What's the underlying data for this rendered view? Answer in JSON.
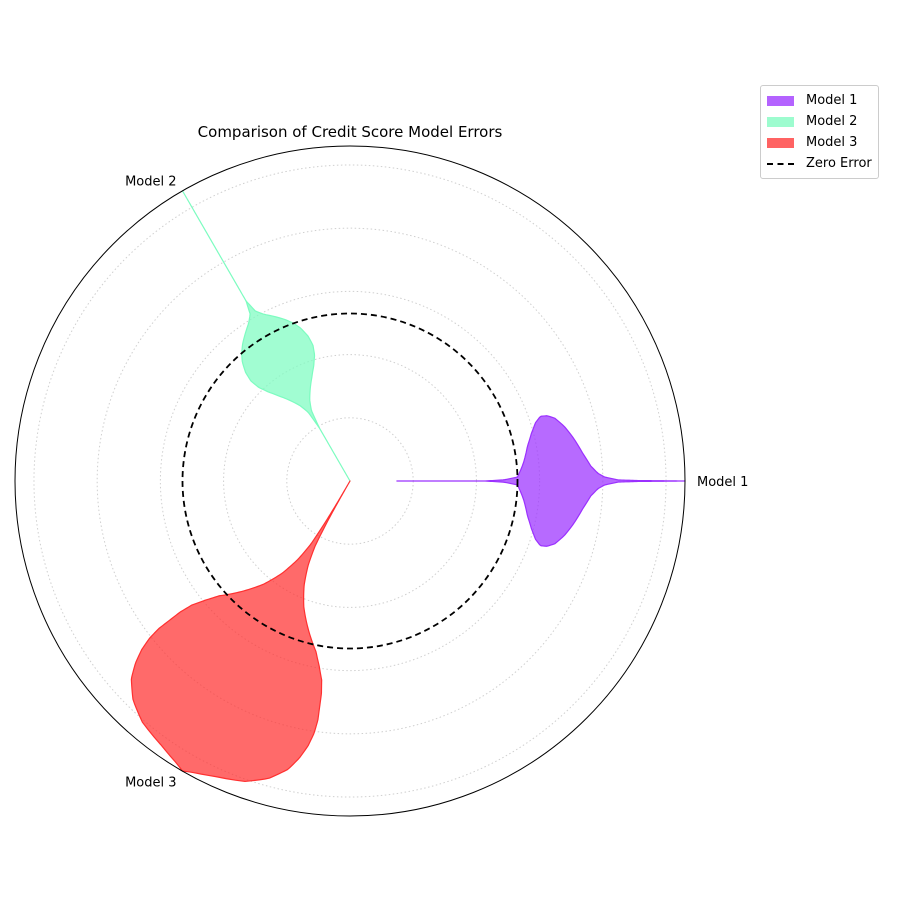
{
  "chart_data": {
    "type": "radar-violin",
    "title": "Comparison of Credit Score Model Errors",
    "categories": [
      "Model 1",
      "Model 2",
      "Model 3"
    ],
    "radial_axis": {
      "min": -2.5,
      "max": 2.5,
      "zero_error": 0,
      "grid": true
    },
    "series": [
      {
        "name": "Model 1",
        "color": "#9b30ff",
        "error_range": [
          -1.8,
          2.5
        ],
        "density_peak_error": 0.5,
        "profile": [
          [
            -1.8,
            0.0
          ],
          [
            -1.7,
            0.0
          ],
          [
            -1.3,
            0.0
          ],
          [
            -0.8,
            0.0
          ],
          [
            -0.5,
            0.0
          ],
          [
            -0.2,
            0.01
          ],
          [
            0.0,
            0.03
          ],
          [
            0.1,
            0.13
          ],
          [
            0.2,
            0.25
          ],
          [
            0.3,
            0.33
          ],
          [
            0.4,
            0.39
          ],
          [
            0.5,
            0.42
          ],
          [
            0.6,
            0.41
          ],
          [
            0.7,
            0.38
          ],
          [
            0.8,
            0.32
          ],
          [
            0.9,
            0.24
          ],
          [
            1.0,
            0.15
          ],
          [
            1.1,
            0.08
          ],
          [
            1.2,
            0.04
          ],
          [
            1.3,
            0.02
          ],
          [
            1.5,
            0.005
          ],
          [
            1.8,
            0.002
          ],
          [
            2.5,
            0.0
          ]
        ]
      },
      {
        "name": "Model 2",
        "color": "#7dfcc0",
        "error_range": [
          -2.5,
          2.5
        ],
        "density_peak_error": -0.4,
        "profile": [
          [
            -2.5,
            0.0
          ],
          [
            -2.0,
            0.0
          ],
          [
            -1.6,
            0.0
          ],
          [
            -1.3,
            0.03
          ],
          [
            -1.15,
            0.08
          ],
          [
            -1.0,
            0.15
          ],
          [
            -0.85,
            0.22
          ],
          [
            -0.7,
            0.28
          ],
          [
            -0.55,
            0.32
          ],
          [
            -0.4,
            0.33
          ],
          [
            -0.25,
            0.31
          ],
          [
            -0.1,
            0.27
          ],
          [
            0.0,
            0.23
          ],
          [
            0.1,
            0.18
          ],
          [
            0.2,
            0.12
          ],
          [
            0.3,
            0.06
          ],
          [
            0.4,
            0.02
          ],
          [
            0.6,
            0.0
          ],
          [
            1.0,
            0.0
          ],
          [
            1.4,
            0.0
          ],
          [
            2.5,
            0.0
          ]
        ]
      },
      {
        "name": "Model 3",
        "color": "#ff3030",
        "error_range": [
          -2.5,
          2.5
        ],
        "density_peak_error": 0.6,
        "profile": [
          [
            -2.5,
            0.0
          ],
          [
            -2.1,
            0.01
          ],
          [
            -1.8,
            0.02
          ],
          [
            -1.4,
            0.04
          ],
          [
            -1.1,
            0.08
          ],
          [
            -0.8,
            0.14
          ],
          [
            -0.5,
            0.22
          ],
          [
            -0.2,
            0.32
          ],
          [
            0.1,
            0.42
          ],
          [
            0.3,
            0.46
          ],
          [
            0.5,
            0.49
          ],
          [
            0.7,
            0.5
          ],
          [
            0.9,
            0.5
          ],
          [
            1.1,
            0.5
          ],
          [
            1.3,
            0.49
          ],
          [
            1.5,
            0.47
          ],
          [
            1.7,
            0.44
          ],
          [
            1.9,
            0.4
          ],
          [
            2.1,
            0.33
          ],
          [
            2.25,
            0.24
          ],
          [
            2.35,
            0.12
          ],
          [
            2.45,
            0.03
          ],
          [
            2.5,
            0.0
          ]
        ]
      }
    ],
    "reference_lines": [
      {
        "name": "Zero Error",
        "value": 0,
        "style": "dashed",
        "color": "#000000"
      }
    ],
    "legend": {
      "placement": "top-right",
      "entries": [
        "Model 1",
        "Model 2",
        "Model 3",
        "Zero Error"
      ]
    }
  }
}
